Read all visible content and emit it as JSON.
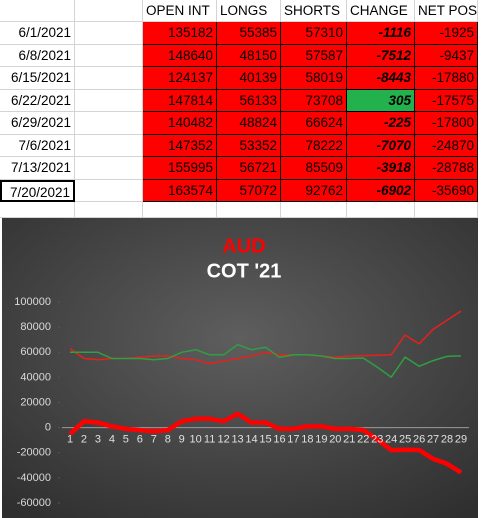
{
  "table": {
    "columns": [
      "OPEN INT",
      "LONGS",
      "SHORTS",
      "CHANGE",
      "NET POS."
    ],
    "rows": [
      [
        "6/1/2021",
        135182,
        55385,
        57310,
        -1116,
        -1925
      ],
      [
        "6/8/2021",
        148640,
        48150,
        57587,
        -7512,
        -9437
      ],
      [
        "6/15/2021",
        124137,
        40139,
        58019,
        -8443,
        -17880
      ],
      [
        "6/22/2021",
        147814,
        56133,
        73708,
        305,
        -17575
      ],
      [
        "6/29/2021",
        140482,
        48824,
        66624,
        -225,
        -17800
      ],
      [
        "7/6/2021",
        147352,
        53352,
        78222,
        -7070,
        -24870
      ],
      [
        "7/13/2021",
        155995,
        56721,
        85509,
        -3918,
        -28788
      ],
      [
        "7/20/2021",
        163574,
        57072,
        92762,
        -6902,
        -35690
      ]
    ]
  },
  "chart_data": {
    "type": "line",
    "title": "AUD",
    "subtitle": "COT '21",
    "categories": [
      "1",
      "2",
      "3",
      "4",
      "5",
      "6",
      "7",
      "8",
      "9",
      "10",
      "11",
      "12",
      "13",
      "14",
      "15",
      "16",
      "17",
      "18",
      "19",
      "20",
      "21",
      "22",
      "23",
      "24",
      "25",
      "26",
      "27",
      "28",
      "29"
    ],
    "series": [
      {
        "color": "#e8201a",
        "width": 1.5,
        "values": [
          63000,
          55000,
          54000,
          55000,
          55000,
          56000,
          57000,
          57000,
          55000,
          54000,
          51000,
          53000,
          55000,
          57000,
          60000,
          58000,
          58000,
          58000,
          57000,
          56000,
          57000,
          57310,
          57587,
          58019,
          73708,
          66624,
          78222,
          85509,
          92762
        ]
      },
      {
        "color": "#2ea043",
        "width": 1.5,
        "values": [
          60000,
          60000,
          60000,
          55000,
          55000,
          55000,
          54000,
          55000,
          60000,
          62000,
          58000,
          58000,
          66000,
          62000,
          64000,
          56000,
          58000,
          58000,
          57000,
          55000,
          55000,
          55385,
          48150,
          40139,
          56133,
          48824,
          53352,
          56721,
          57072
        ]
      },
      {
        "color": "#ff0000",
        "width": 4.5,
        "values": [
          -5000,
          5000,
          4000,
          1000,
          -1000,
          -2000,
          -3000,
          -2000,
          5000,
          7000,
          7000,
          5000,
          11000,
          4000,
          4000,
          -1000,
          -1000,
          1000,
          1000,
          -1000,
          -1000,
          -1925,
          -9437,
          -17880,
          -17575,
          -17800,
          -24870,
          -28788,
          -35690
        ]
      }
    ],
    "ylim": [
      -60000,
      100000
    ],
    "yticks": [
      -60000,
      -40000,
      -20000,
      0,
      20000,
      40000,
      60000,
      80000,
      100000
    ]
  }
}
